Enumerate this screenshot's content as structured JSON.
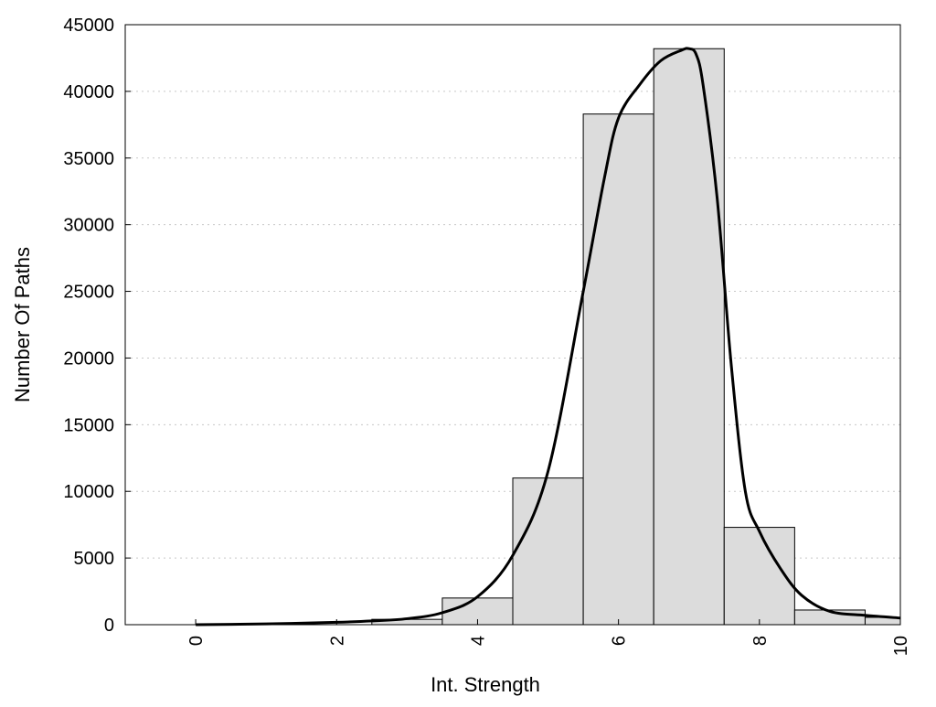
{
  "chart_data": {
    "type": "bar",
    "title": "",
    "xlabel": "Int. Strength",
    "ylabel": "Number Of Paths",
    "xlim": [
      -1,
      10
    ],
    "ylim": [
      0,
      45000
    ],
    "x_ticks": [
      0,
      2,
      4,
      6,
      8,
      10
    ],
    "y_ticks": [
      0,
      5000,
      10000,
      15000,
      20000,
      25000,
      30000,
      35000,
      40000,
      45000
    ],
    "grid": "horizontal dotted",
    "bar_width": 1,
    "bars": [
      {
        "x": 0,
        "value": 0
      },
      {
        "x": 1,
        "value": 0
      },
      {
        "x": 2,
        "value": 0
      },
      {
        "x": 3,
        "value": 400
      },
      {
        "x": 4,
        "value": 2000
      },
      {
        "x": 5,
        "value": 11000
      },
      {
        "x": 6,
        "value": 38300
      },
      {
        "x": 7,
        "value": 43200
      },
      {
        "x": 8,
        "value": 7300
      },
      {
        "x": 9,
        "value": 1100
      },
      {
        "x": 10,
        "value": 550
      }
    ],
    "curve": {
      "x": [
        0,
        1,
        2,
        2.5,
        3,
        3.5,
        4,
        4.5,
        5,
        5.5,
        5.8,
        6,
        6.3,
        6.6,
        6.9,
        7,
        7.1,
        7.2,
        7.4,
        7.6,
        7.8,
        8,
        8.3,
        8.6,
        9,
        9.5,
        10
      ],
      "y": [
        0,
        60,
        180,
        280,
        450,
        900,
        2100,
        5200,
        11500,
        25000,
        33500,
        38000,
        40500,
        42300,
        43100,
        43200,
        42800,
        40500,
        32000,
        19500,
        10000,
        7000,
        4200,
        2200,
        1000,
        700,
        500
      ]
    },
    "colors": {
      "bar_fill": "#dcdcdc",
      "bar_stroke": "#000000",
      "curve": "#000000",
      "grid": "#c8c8c8"
    }
  }
}
